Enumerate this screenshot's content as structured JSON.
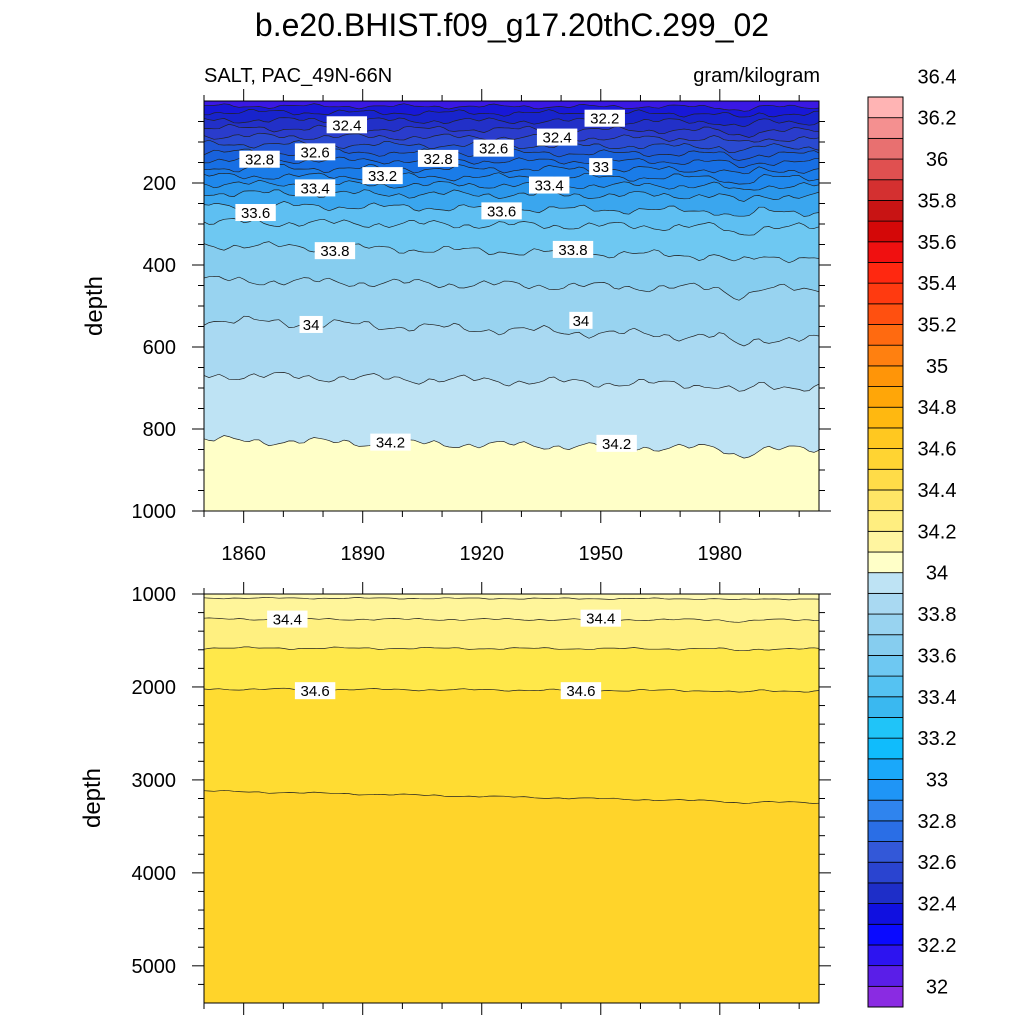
{
  "chart_data": {
    "type": "heatmap",
    "title": "b.e20.BHIST.f09_g17.20thC.299_02",
    "variable_label": "SALT, PAC_49N-66N",
    "units_label": "gram/kilogram",
    "x_ticks": [
      "1860",
      "1890",
      "1920",
      "1950",
      "1980"
    ],
    "x_range": [
      1850,
      2005
    ],
    "colorbar": {
      "levels": [
        "32",
        "32.2",
        "32.4",
        "32.6",
        "32.8",
        "33",
        "33.2",
        "33.4",
        "33.6",
        "33.8",
        "34",
        "34.2",
        "34.4",
        "34.6",
        "34.8",
        "35",
        "35.2",
        "35.4",
        "35.6",
        "35.8",
        "36",
        "36.2",
        "36.4"
      ],
      "colors": [
        "#8a2be2",
        "#5a1ee8",
        "#2d14f0",
        "#0a0aff",
        "#1010e0",
        "#1e2ec8",
        "#2a44d0",
        "#3358d8",
        "#2a6ee6",
        "#2f84ee",
        "#1f95f6",
        "#1aa8fa",
        "#10bcfc",
        "#20c4f8",
        "#3ab8f0",
        "#55c2f2",
        "#6ec8f2",
        "#86cdef",
        "#98d3f0",
        "#a9d9f2",
        "#bee3f4",
        "#ffffc8",
        "#fff5a0",
        "#ffee80",
        "#ffe566",
        "#ffdc48",
        "#ffd432",
        "#ffc820",
        "#ffb810",
        "#ffa608",
        "#ff9508",
        "#ff8010",
        "#ff6a10",
        "#ff5010",
        "#ff3a10",
        "#ff2810",
        "#f01010",
        "#d40808",
        "#c81414",
        "#d43030",
        "#e05050",
        "#e87070",
        "#f49090",
        "#ffb4b4"
      ]
    },
    "panels": [
      {
        "name": "upper",
        "ylabel": "depth",
        "y_ticks": [
          "200",
          "400",
          "600",
          "800",
          "1000"
        ],
        "y_range": [
          0,
          1000
        ],
        "contour_labels": [
          {
            "text": "32.4",
            "year": 1886,
            "depth": 58
          },
          {
            "text": "32.2",
            "year": 1951,
            "depth": 42
          },
          {
            "text": "32.4",
            "year": 1939,
            "depth": 88
          },
          {
            "text": "32.8",
            "year": 1864,
            "depth": 142
          },
          {
            "text": "32.6",
            "year": 1878,
            "depth": 124
          },
          {
            "text": "32.6",
            "year": 1923,
            "depth": 115
          },
          {
            "text": "32.8",
            "year": 1909,
            "depth": 140
          },
          {
            "text": "33",
            "year": 1950,
            "depth": 160
          },
          {
            "text": "33.2",
            "year": 1895,
            "depth": 182
          },
          {
            "text": "33.4",
            "year": 1878,
            "depth": 212
          },
          {
            "text": "33.4",
            "year": 1937,
            "depth": 205
          },
          {
            "text": "33.6",
            "year": 1863,
            "depth": 272
          },
          {
            "text": "33.6",
            "year": 1925,
            "depth": 268
          },
          {
            "text": "33.8",
            "year": 1883,
            "depth": 365
          },
          {
            "text": "33.8",
            "year": 1943,
            "depth": 362
          },
          {
            "text": "34",
            "year": 1877,
            "depth": 545
          },
          {
            "text": "34",
            "year": 1945,
            "depth": 535
          },
          {
            "text": "34.2",
            "year": 1897,
            "depth": 832
          },
          {
            "text": "34.2",
            "year": 1954,
            "depth": 835
          }
        ]
      },
      {
        "name": "lower",
        "ylabel": "depth",
        "y_ticks": [
          "1000",
          "2000",
          "3000",
          "4000",
          "5000"
        ],
        "y_range": [
          1000,
          5400
        ],
        "contour_labels": [
          {
            "text": "34.4",
            "year": 1871,
            "depth": 1270
          },
          {
            "text": "34.4",
            "year": 1950,
            "depth": 1260
          },
          {
            "text": "34.6",
            "year": 1878,
            "depth": 2040
          },
          {
            "text": "34.6",
            "year": 1945,
            "depth": 2040
          }
        ]
      }
    ]
  }
}
